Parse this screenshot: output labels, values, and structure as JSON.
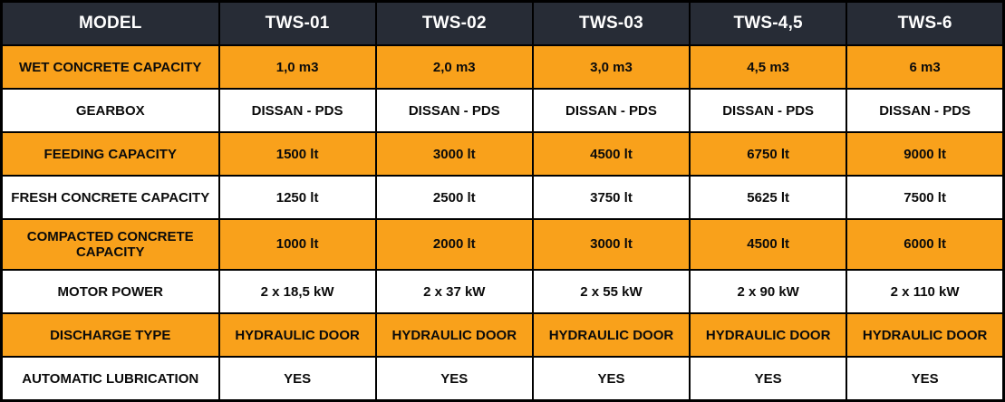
{
  "colors": {
    "header_bg": "#272C36",
    "header_text": "#FFFFFF",
    "highlight_row_bg": "#F9A11B",
    "plain_row_bg": "#FFFFFF",
    "cell_text": "#0B0B0B",
    "border": "#000000"
  },
  "table": {
    "header": [
      "MODEL",
      "TWS-01",
      "TWS-02",
      "TWS-03",
      "TWS-4,5",
      "TWS-6"
    ],
    "rows": [
      {
        "label": "WET CONCRETE CAPACITY",
        "values": [
          "1,0 m3",
          "2,0 m3",
          "3,0 m3",
          "4,5 m3",
          "6 m3"
        ],
        "highlight": true
      },
      {
        "label": "GEARBOX",
        "values": [
          "DISSAN - PDS",
          "DISSAN - PDS",
          "DISSAN - PDS",
          "DISSAN - PDS",
          "DISSAN - PDS"
        ],
        "highlight": false
      },
      {
        "label": "FEEDING CAPACITY",
        "values": [
          "1500 lt",
          "3000 lt",
          "4500 lt",
          "6750 lt",
          "9000 lt"
        ],
        "highlight": true
      },
      {
        "label": "FRESH CONCRETE CAPACITY",
        "values": [
          "1250 lt",
          "2500 lt",
          "3750 lt",
          "5625 lt",
          "7500 lt"
        ],
        "highlight": false
      },
      {
        "label": "COMPACTED CONCRETE CAPACITY",
        "values": [
          "1000 lt",
          "2000 lt",
          "3000 lt",
          "4500 lt",
          "6000 lt"
        ],
        "highlight": true
      },
      {
        "label": "MOTOR POWER",
        "values": [
          "2 x 18,5 kW",
          "2 x 37 kW",
          "2 x 55 kW",
          "2 x 90 kW",
          "2 x 110 kW"
        ],
        "highlight": false
      },
      {
        "label": "DISCHARGE TYPE",
        "values": [
          "HYDRAULIC DOOR",
          "HYDRAULIC DOOR",
          "HYDRAULIC DOOR",
          "HYDRAULIC DOOR",
          "HYDRAULIC DOOR"
        ],
        "highlight": true
      },
      {
        "label": "AUTOMATIC LUBRICATION",
        "values": [
          "YES",
          "YES",
          "YES",
          "YES",
          "YES"
        ],
        "highlight": false
      }
    ]
  }
}
